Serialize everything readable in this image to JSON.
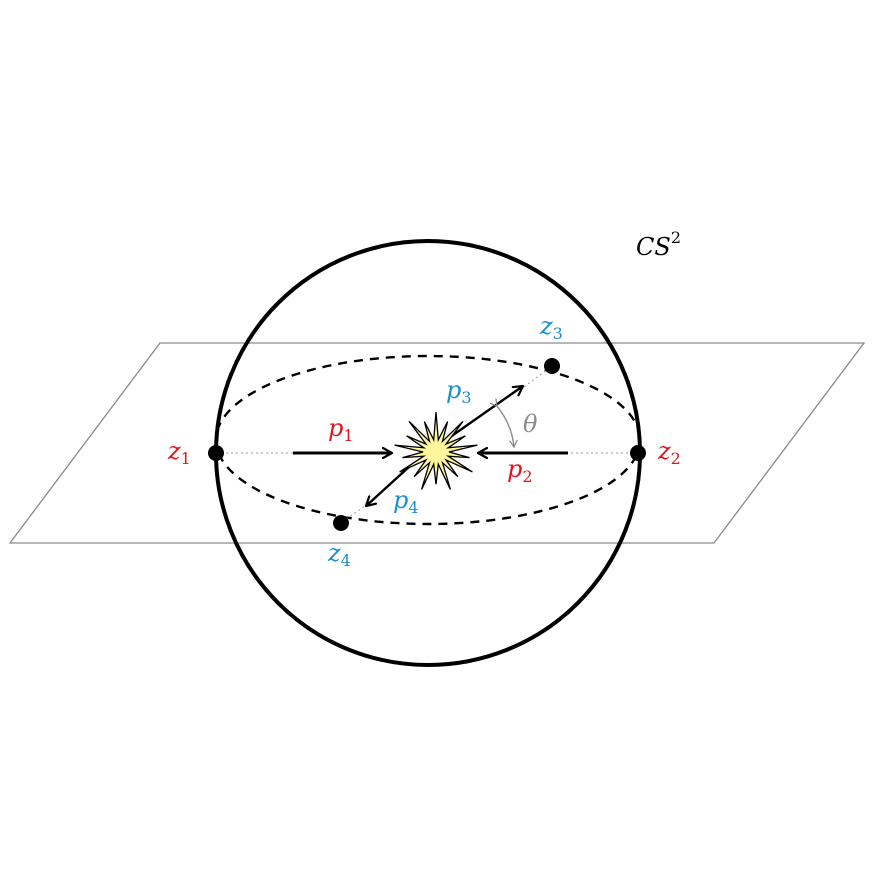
{
  "colors": {
    "incoming": "#e0141e",
    "outgoing": "#1a8fd1",
    "plane": "#8a8a8a",
    "angle": "#8a8a8a",
    "burst_fill": "#fff59d",
    "stroke": "#000000"
  },
  "labels": {
    "sphere": {
      "main": "CS",
      "sup": "2"
    },
    "z1": {
      "base": "z",
      "sub": "1"
    },
    "z2": {
      "base": "z",
      "sub": "2"
    },
    "z3": {
      "base": "z",
      "sub": "3"
    },
    "z4": {
      "base": "z",
      "sub": "4"
    },
    "p1": {
      "base": "p",
      "sub": "1"
    },
    "p2": {
      "base": "p",
      "sub": "2"
    },
    "p3": {
      "base": "p",
      "sub": "3"
    },
    "p4": {
      "base": "p",
      "sub": "4"
    },
    "theta": "θ"
  },
  "icons": {
    "collision": "star-burst-icon"
  }
}
